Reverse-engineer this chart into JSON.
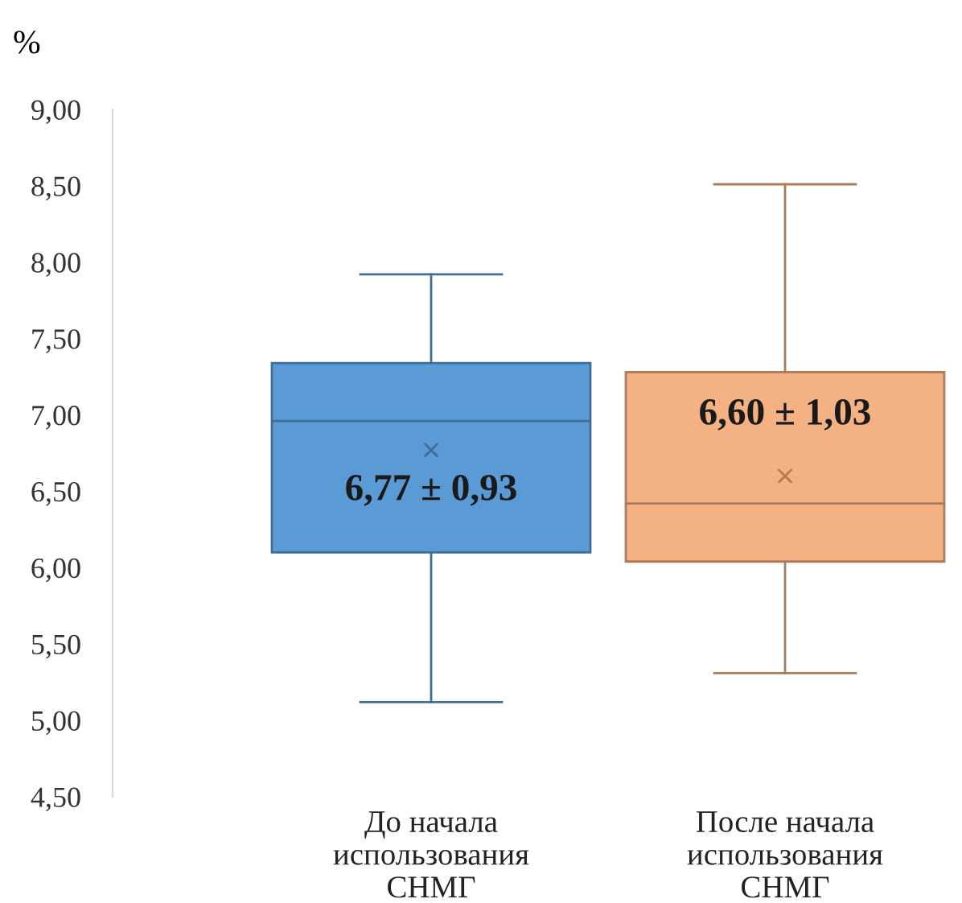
{
  "chart_data": {
    "type": "box",
    "ylabel": "%",
    "categories": [
      "До начала\nиспользования\nСНМГ",
      "После начала\nиспользования\nСНМГ"
    ],
    "boxes": [
      {
        "low": 5.12,
        "q1": 6.1,
        "median": 6.96,
        "q3": 7.34,
        "high": 7.92,
        "mean": 6.77
      },
      {
        "low": 5.31,
        "q1": 6.04,
        "median": 6.42,
        "q3": 7.28,
        "high": 8.51,
        "mean": 6.6
      }
    ],
    "colors": [
      "#5b9bd5",
      "#f4b183"
    ],
    "ylim": [
      4.5,
      9.0
    ],
    "yticks": [
      {
        "value": 4.5,
        "label": "4,50"
      },
      {
        "value": 5.0,
        "label": "5,00"
      },
      {
        "value": 5.5,
        "label": "5,50"
      },
      {
        "value": 6.0,
        "label": "6,00"
      },
      {
        "value": 6.5,
        "label": "6,50"
      },
      {
        "value": 7.0,
        "label": "7,00"
      },
      {
        "value": 7.5,
        "label": "7,50"
      },
      {
        "value": 8.0,
        "label": "8,00"
      },
      {
        "value": 8.5,
        "label": "8,50"
      },
      {
        "value": 9.0,
        "label": "9,00"
      }
    ],
    "annotations": [
      "6,77 ± 0,93",
      "6,60 ± 1,03"
    ],
    "grid": false,
    "marker": "cross"
  }
}
